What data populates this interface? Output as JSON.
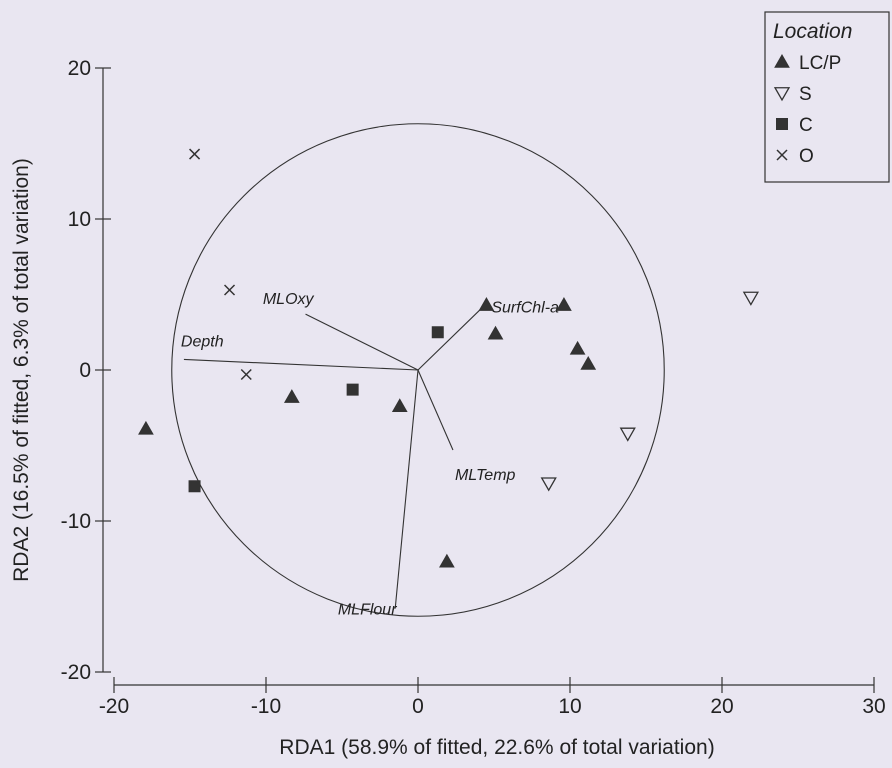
{
  "chart_data": {
    "type": "scatter",
    "xlabel": "RDA1 (58.9% of fitted, 22.6% of total variation)",
    "ylabel": "RDA2 (16.5% of fitted, 6.3% of total variation)",
    "xlim": [
      -20,
      30
    ],
    "ylim": [
      -20,
      20
    ],
    "x_ticks": [
      -20,
      -10,
      0,
      10,
      20,
      30
    ],
    "y_ticks": [
      -20,
      -10,
      0,
      10,
      20
    ],
    "grid": false,
    "legend": {
      "title": "Location",
      "placement": "top-right",
      "entries": [
        {
          "label": "LC/P",
          "marker": "triangle-up-filled"
        },
        {
          "label": "S",
          "marker": "triangle-down-open"
        },
        {
          "label": "C",
          "marker": "square-filled"
        },
        {
          "label": "O",
          "marker": "cross"
        }
      ]
    },
    "series": [
      {
        "name": "LC/P",
        "marker": "triangle-up-filled",
        "points": [
          [
            -17.9,
            -3.9
          ],
          [
            -8.3,
            -1.8
          ],
          [
            -1.2,
            -2.4
          ],
          [
            4.5,
            4.3
          ],
          [
            5.1,
            2.4
          ],
          [
            9.6,
            4.3
          ],
          [
            10.5,
            1.4
          ],
          [
            11.2,
            0.4
          ],
          [
            1.9,
            -12.7
          ]
        ]
      },
      {
        "name": "S",
        "marker": "triangle-down-open",
        "points": [
          [
            21.9,
            4.8
          ],
          [
            13.8,
            -4.2
          ],
          [
            8.6,
            -7.5
          ]
        ]
      },
      {
        "name": "C",
        "marker": "square-filled",
        "points": [
          [
            -14.7,
            -7.7
          ],
          [
            -4.3,
            -1.3
          ],
          [
            1.3,
            2.5
          ]
        ]
      },
      {
        "name": "O",
        "marker": "cross",
        "points": [
          [
            -14.7,
            14.3
          ],
          [
            -12.4,
            5.3
          ],
          [
            -11.3,
            -0.3
          ]
        ]
      }
    ],
    "vectors": [
      {
        "label": "Depth",
        "x": -15.4,
        "y": 0.7
      },
      {
        "label": "MLOxy",
        "x": -7.4,
        "y": 3.7
      },
      {
        "label": "SurfChl-a",
        "x": 4.3,
        "y": 4.2
      },
      {
        "label": "MLTemp",
        "x": 2.3,
        "y": -5.3
      },
      {
        "label": "MLFlour",
        "x": -1.5,
        "y": -15.8
      }
    ],
    "circle": {
      "center": [
        0,
        0
      ],
      "radius": 16.2
    }
  }
}
